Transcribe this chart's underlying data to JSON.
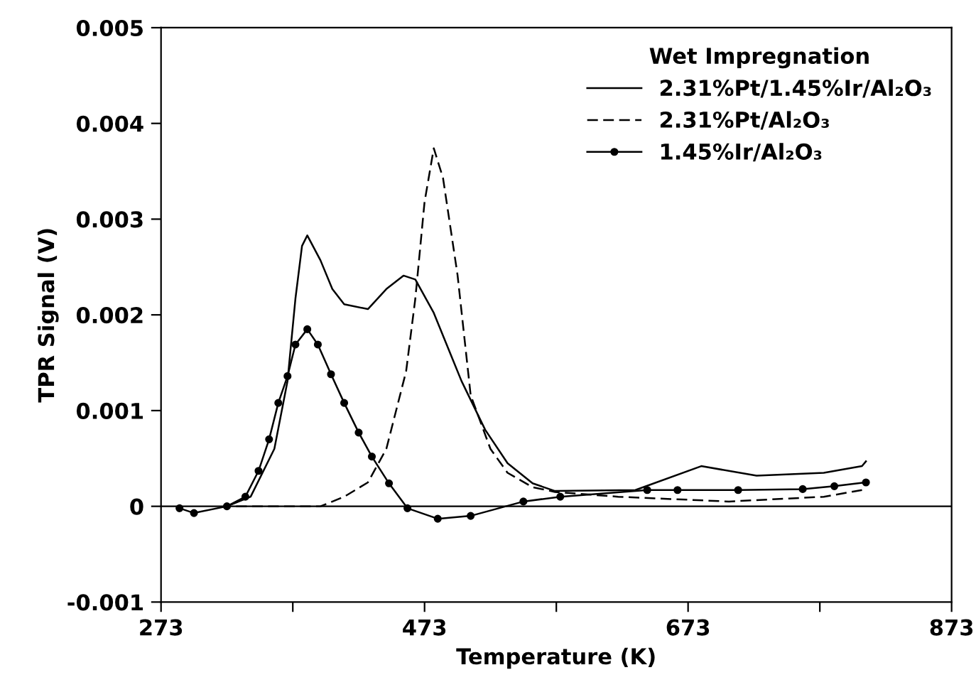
{
  "chart_data": {
    "type": "line",
    "xlabel": "Temperature (K)",
    "ylabel": "TPR Signal (V)",
    "legend_title": "Wet Impregnation",
    "legend": "top right",
    "xlim": [
      273,
      873
    ],
    "ylim": [
      -0.001,
      0.005
    ],
    "xticks": [
      273,
      {
        "value": 373,
        "label": null
      },
      473,
      {
        "value": 573,
        "label": null
      },
      673,
      {
        "value": 773,
        "label": null
      },
      873
    ],
    "yticks": [
      -0.001,
      0,
      0.001,
      0.002,
      0.003,
      0.004,
      0.005
    ],
    "ref_lines": [
      {
        "axis": "y",
        "value": 0,
        "color": "#000000"
      }
    ],
    "series": [
      {
        "name": "2.31%Pt/1.45%Ir/Al₂O₃",
        "color": "#000000",
        "line_style": "solid",
        "marker": "none",
        "x": [
          323,
          341,
          359,
          369,
          375,
          380,
          384,
          394,
          403,
          412,
          430,
          444,
          457,
          466,
          480,
          501,
          519,
          536,
          555,
          572,
          633,
          683,
          725,
          776,
          805,
          808
        ],
        "values": [
          0.0,
          0.0001,
          0.0006,
          0.00131,
          0.00217,
          0.00272,
          0.00283,
          0.00257,
          0.00227,
          0.00211,
          0.00206,
          0.00227,
          0.00241,
          0.00237,
          0.00202,
          0.00131,
          0.0008,
          0.00045,
          0.00024,
          0.00016,
          0.00017,
          0.00042,
          0.00032,
          0.00035,
          0.00042,
          0.00047
        ]
      },
      {
        "name": "2.31%Pt/Al₂O₃",
        "color": "#000000",
        "line_style": "dashed",
        "marker": "none",
        "x": [
          330,
          394,
          412,
          430,
          444,
          459,
          466,
          473,
          480,
          487,
          498,
          508,
          523,
          536,
          555,
          572,
          620,
          704,
          776,
          805
        ],
        "values": [
          0.0,
          0.0,
          0.0001,
          0.00025,
          0.0006,
          0.00141,
          0.00217,
          0.00318,
          0.00374,
          0.00343,
          0.00242,
          0.00116,
          0.0006,
          0.00035,
          0.0002,
          0.00015,
          0.0001,
          5e-05,
          0.0001,
          0.00017
        ]
      },
      {
        "name": "1.45%Ir/Al₂O₃",
        "color": "#000000",
        "line_style": "solid",
        "marker": "circle",
        "x": [
          287,
          298,
          323,
          337,
          347,
          355,
          362,
          369,
          375,
          384,
          392,
          402,
          412,
          423,
          433,
          446,
          460,
          483,
          508,
          548,
          576,
          642,
          665,
          711,
          760,
          784,
          808
        ],
        "values": [
          -2e-05,
          -7e-05,
          0.0,
          0.0001,
          0.00037,
          0.0007,
          0.00108,
          0.00136,
          0.00169,
          0.00185,
          0.00169,
          0.00138,
          0.00108,
          0.00077,
          0.00052,
          0.00024,
          -2e-05,
          -0.00013,
          -0.0001,
          5e-05,
          0.0001,
          0.00017,
          0.00017,
          0.00017,
          0.00018,
          0.00021,
          0.00025
        ]
      }
    ]
  }
}
